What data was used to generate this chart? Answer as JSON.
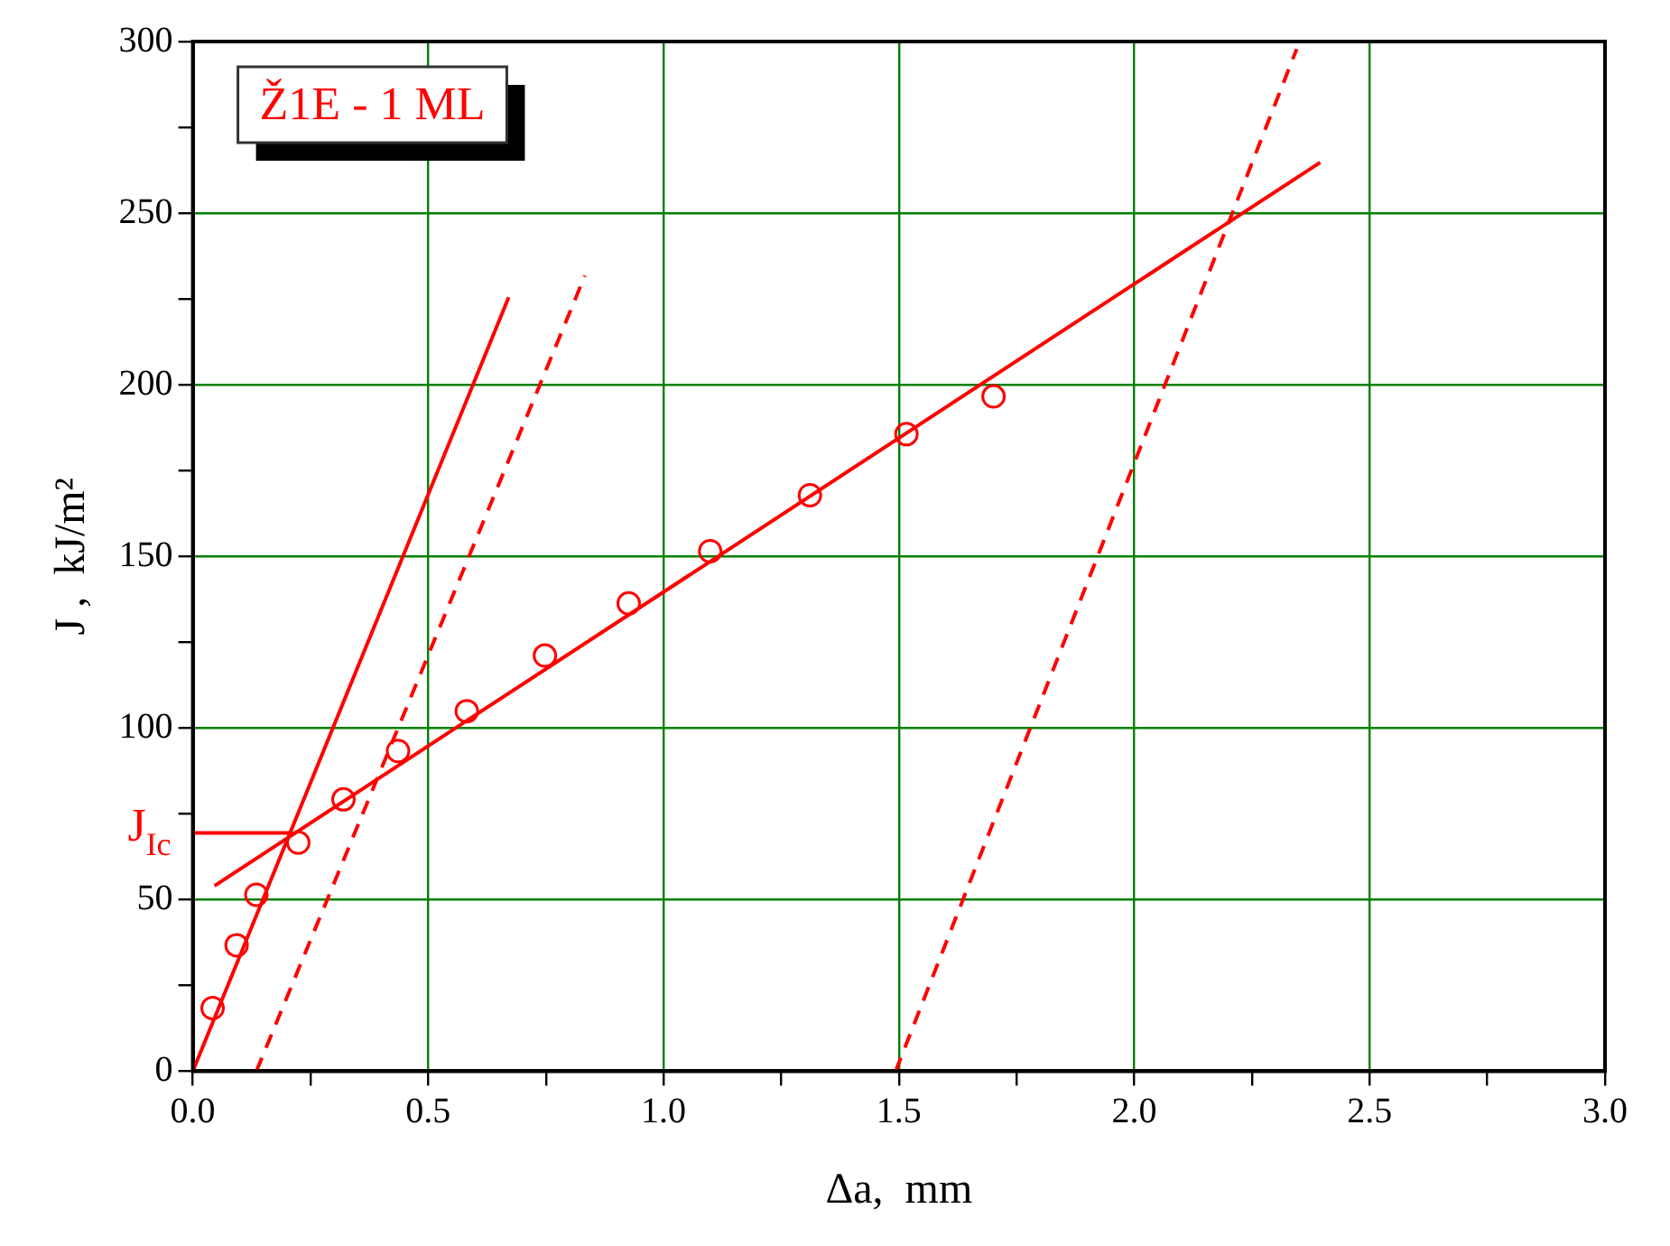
{
  "chart_data": {
    "type": "scatter",
    "xlabel": "Δa,  mm",
    "ylabel": "J ,  kJ/m²",
    "xlim": [
      0,
      3
    ],
    "ylim": [
      0,
      300
    ],
    "xticks": [
      {
        "value": 0,
        "label": "0.0"
      },
      {
        "value": 0.25,
        "label": null
      },
      {
        "value": 0.5,
        "label": "0.5"
      },
      {
        "value": 0.75,
        "label": null
      },
      {
        "value": 1,
        "label": "1.0"
      },
      {
        "value": 1.25,
        "label": null
      },
      {
        "value": 1.5,
        "label": "1.5"
      },
      {
        "value": 1.75,
        "label": null
      },
      {
        "value": 2,
        "label": "2.0"
      },
      {
        "value": 2.25,
        "label": null
      },
      {
        "value": 2.5,
        "label": "2.5"
      },
      {
        "value": 2.75,
        "label": null
      },
      {
        "value": 3,
        "label": "3.0"
      }
    ],
    "yticks": [
      0,
      {
        "value": 25,
        "label": null
      },
      50,
      {
        "value": 75,
        "label": null
      },
      100,
      {
        "value": 125,
        "label": null
      },
      150,
      {
        "value": 175,
        "label": null
      },
      200,
      {
        "value": 225,
        "label": null
      },
      250,
      {
        "value": 275,
        "label": null
      },
      300
    ],
    "grid": true,
    "legend": false,
    "series": [
      {
        "type": "scatter",
        "color": "#ff0000",
        "marker": "circle",
        "x": [
          0.042,
          0.093,
          0.135,
          0.224,
          0.32,
          0.436,
          0.582,
          0.748,
          0.926,
          1.099,
          1.311,
          1.516,
          1.701
        ],
        "values": [
          18.4,
          36.7,
          51.4,
          66.6,
          79.2,
          93.3,
          104.9,
          121.1,
          136.3,
          151.5,
          167.8,
          185.6,
          196.6
        ]
      },
      {
        "type": "line",
        "color": "#ff0000",
        "line_style": "solid",
        "marker": "none",
        "x": [
          0.046,
          2.395
        ],
        "values": [
          54,
          264.8
        ]
      },
      {
        "type": "line",
        "color": "#ff0000",
        "line_style": "solid",
        "marker": "none",
        "x": [
          0,
          0.671
        ],
        "values": [
          0,
          225.5
        ]
      },
      {
        "type": "line",
        "color": "#ff0000",
        "line_style": "dashed",
        "marker": "none",
        "x": [
          0.135,
          0.833
        ],
        "values": [
          0,
          231.8
        ]
      },
      {
        "type": "line",
        "color": "#ff0000",
        "line_style": "dashed",
        "marker": "none",
        "x": [
          1.493,
          2.345
        ],
        "values": [
          0,
          297.8
        ]
      },
      {
        "type": "line",
        "color": "#ff0000",
        "line_style": "solid",
        "marker": "none",
        "x": [
          0,
          0.204
        ],
        "values": [
          69.4,
          69.4
        ]
      }
    ],
    "annotations": [
      "Ž1E - 1 ML",
      {
        "text": "J$_{Ic}$",
        "x": 0,
        "y": 69.4
      }
    ]
  }
}
